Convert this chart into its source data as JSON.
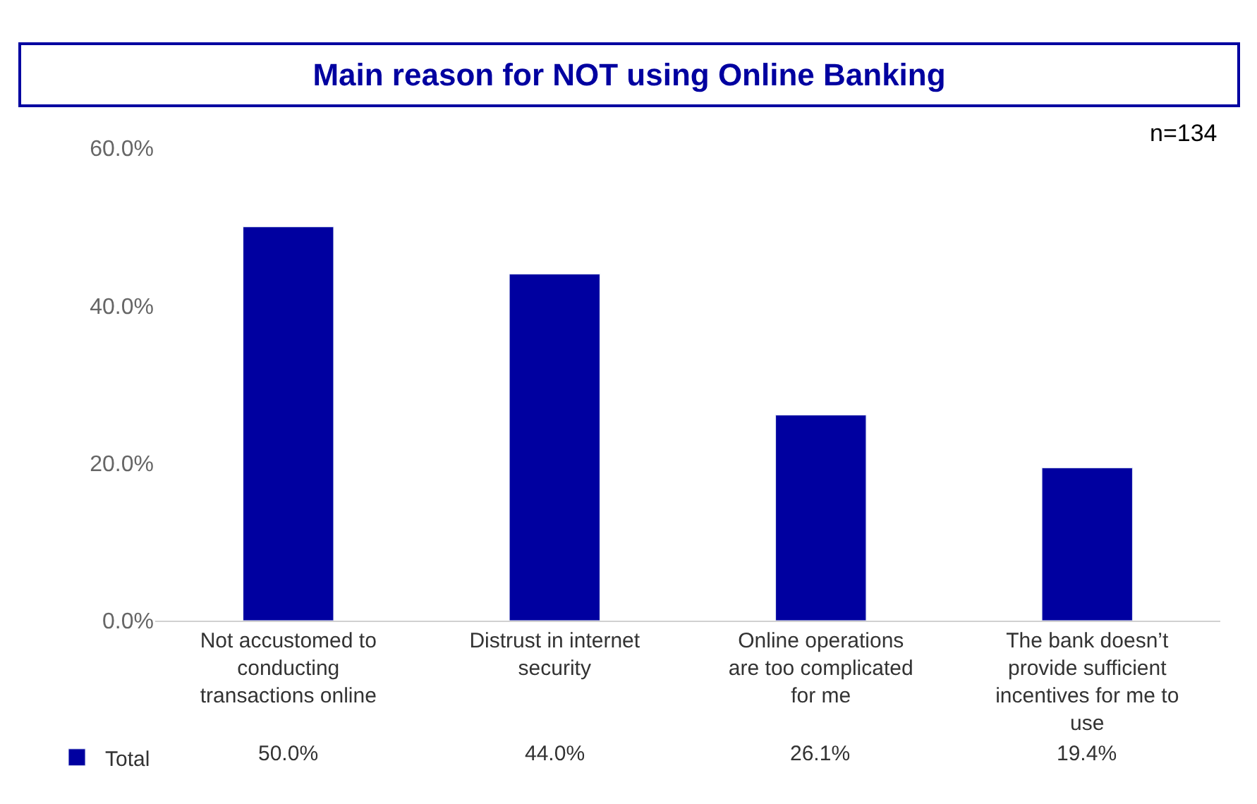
{
  "chart_data": {
    "type": "bar",
    "title": "Main reason for NOT using Online Banking",
    "annotations": [
      "n=134"
    ],
    "categories": [
      "Not accustomed to conducting transactions online",
      "Distrust in internet security",
      "Online operations are too complicated for me",
      "The bank doesn’t provide sufficient incentives for me to use"
    ],
    "series": [
      {
        "name": "Total",
        "color": "#0000a0",
        "values": [
          50.0,
          44.0,
          26.1,
          19.4
        ]
      }
    ],
    "value_labels": [
      "50.0%",
      "44.0%",
      "26.1%",
      "19.4%"
    ],
    "ylim": [
      0,
      60
    ],
    "yticks": [
      {
        "value": 0,
        "label": "0.0%"
      },
      {
        "value": 20,
        "label": "20.0%"
      },
      {
        "value": 40,
        "label": "40.0%"
      },
      {
        "value": 60,
        "label": "60.0%"
      }
    ],
    "legend": "bottom left"
  }
}
